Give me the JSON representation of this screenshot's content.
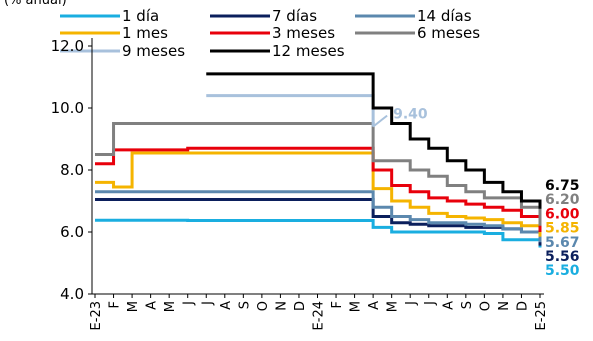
{
  "chart_data": {
    "type": "line",
    "subtitle": "(% anual)",
    "x_labels": [
      "E-23",
      "F",
      "M",
      "A",
      "M",
      "J",
      "J",
      "A",
      "S",
      "O",
      "N",
      "D",
      "E-24",
      "F",
      "M",
      "A",
      "M",
      "J",
      "J",
      "A",
      "S",
      "O",
      "N",
      "D",
      "E-25"
    ],
    "ylim": [
      4.0,
      12.0
    ],
    "yticks": [
      "4.0",
      "6.0",
      "8.0",
      "10.0",
      "12.0"
    ],
    "series": [
      {
        "name": "1 día",
        "color": "#1aaee0",
        "end_label": "5.50",
        "values": [
          6.38,
          6.38,
          6.38,
          6.38,
          6.38,
          6.37,
          6.37,
          6.37,
          6.37,
          6.37,
          6.37,
          6.37,
          6.37,
          6.37,
          6.37,
          6.15,
          6.0,
          6.0,
          6.0,
          6.0,
          6.0,
          5.95,
          5.75,
          5.75,
          5.5
        ]
      },
      {
        "name": "7 días",
        "color": "#0b1f5c",
        "end_label": "5.56",
        "values": [
          7.05,
          7.05,
          7.05,
          7.05,
          7.05,
          7.05,
          7.05,
          7.05,
          7.05,
          7.05,
          7.05,
          7.05,
          7.05,
          7.05,
          7.05,
          6.5,
          6.3,
          6.25,
          6.2,
          6.2,
          6.15,
          6.15,
          6.1,
          6.0,
          5.56
        ]
      },
      {
        "name": "14 días",
        "color": "#5b88ae",
        "end_label": "5.67",
        "values": [
          7.3,
          7.3,
          7.3,
          7.3,
          7.3,
          7.3,
          7.3,
          7.3,
          7.3,
          7.3,
          7.3,
          7.3,
          7.3,
          7.3,
          7.3,
          6.8,
          6.5,
          6.4,
          6.3,
          6.3,
          6.25,
          6.2,
          6.1,
          6.0,
          5.67
        ]
      },
      {
        "name": "1 mes",
        "color": "#f5b400",
        "end_label": "5.85",
        "values": [
          7.6,
          7.45,
          8.55,
          8.55,
          8.55,
          8.55,
          8.55,
          8.55,
          8.55,
          8.55,
          8.55,
          8.55,
          8.55,
          8.55,
          8.55,
          7.4,
          7.0,
          6.8,
          6.6,
          6.5,
          6.45,
          6.4,
          6.3,
          6.2,
          5.85
        ]
      },
      {
        "name": "3 meses",
        "color": "#e8000b",
        "end_label": "6.00",
        "values": [
          8.2,
          8.65,
          8.65,
          8.65,
          8.65,
          8.7,
          8.7,
          8.7,
          8.7,
          8.7,
          8.7,
          8.7,
          8.7,
          8.7,
          8.7,
          8.0,
          7.5,
          7.3,
          7.1,
          7.0,
          6.9,
          6.8,
          6.7,
          6.5,
          6.0
        ]
      },
      {
        "name": "6 meses",
        "color": "#808080",
        "end_label": "6.20",
        "values": [
          8.5,
          9.5,
          9.5,
          9.5,
          9.5,
          9.5,
          9.5,
          9.5,
          9.5,
          9.5,
          9.5,
          9.5,
          9.5,
          9.5,
          9.5,
          8.3,
          8.3,
          8.0,
          7.8,
          7.5,
          7.3,
          7.1,
          7.1,
          6.8,
          6.2
        ]
      },
      {
        "name": "9 meses",
        "color": "#a8c1dc",
        "end_label": "9.40",
        "values": [
          null,
          null,
          null,
          null,
          null,
          null,
          10.4,
          10.4,
          10.4,
          10.4,
          10.4,
          10.4,
          10.4,
          10.4,
          10.4,
          9.4,
          null,
          null,
          null,
          null,
          null,
          null,
          null,
          null,
          null
        ]
      },
      {
        "name": "12 meses",
        "color": "#000000",
        "end_label": "6.75",
        "values": [
          null,
          null,
          null,
          null,
          null,
          null,
          11.1,
          11.1,
          11.1,
          11.1,
          11.1,
          11.1,
          11.1,
          11.1,
          11.1,
          10.0,
          9.5,
          9.0,
          8.7,
          8.3,
          8.0,
          7.6,
          7.3,
          7.0,
          6.75
        ]
      }
    ],
    "legend_position": "top",
    "grid": false
  }
}
